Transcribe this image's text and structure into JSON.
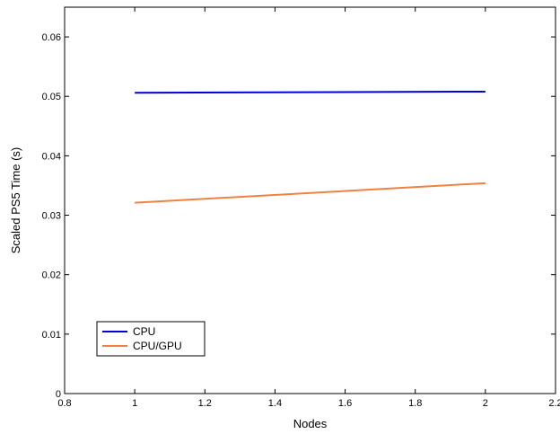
{
  "chart_data": {
    "type": "line",
    "xlabel": "Nodes",
    "ylabel": "Scaled PS5 Time (s)",
    "xlim": [
      0.8,
      2.2
    ],
    "ylim": [
      0,
      0.065
    ],
    "xticks": [
      0.8,
      1,
      1.2,
      1.4,
      1.6,
      1.8,
      2,
      2.2
    ],
    "xtick_labels": [
      "0.8",
      "1",
      "1.2",
      "1.4",
      "1.6",
      "1.8",
      "2",
      "2.2"
    ],
    "yticks": [
      0,
      0.01,
      0.02,
      0.03,
      0.04,
      0.05,
      0.06
    ],
    "ytick_labels": [
      "0",
      "0.01",
      "0.02",
      "0.03",
      "0.04",
      "0.05",
      "0.06"
    ],
    "grid": false,
    "legend_position": "bottom-left",
    "series": [
      {
        "name": "CPU",
        "color": "#0000dd",
        "x": [
          1,
          2
        ],
        "y": [
          0.0506,
          0.0508
        ]
      },
      {
        "name": "CPU/GPU",
        "color": "#f28040",
        "x": [
          1,
          2
        ],
        "y": [
          0.0321,
          0.0354
        ]
      }
    ]
  }
}
